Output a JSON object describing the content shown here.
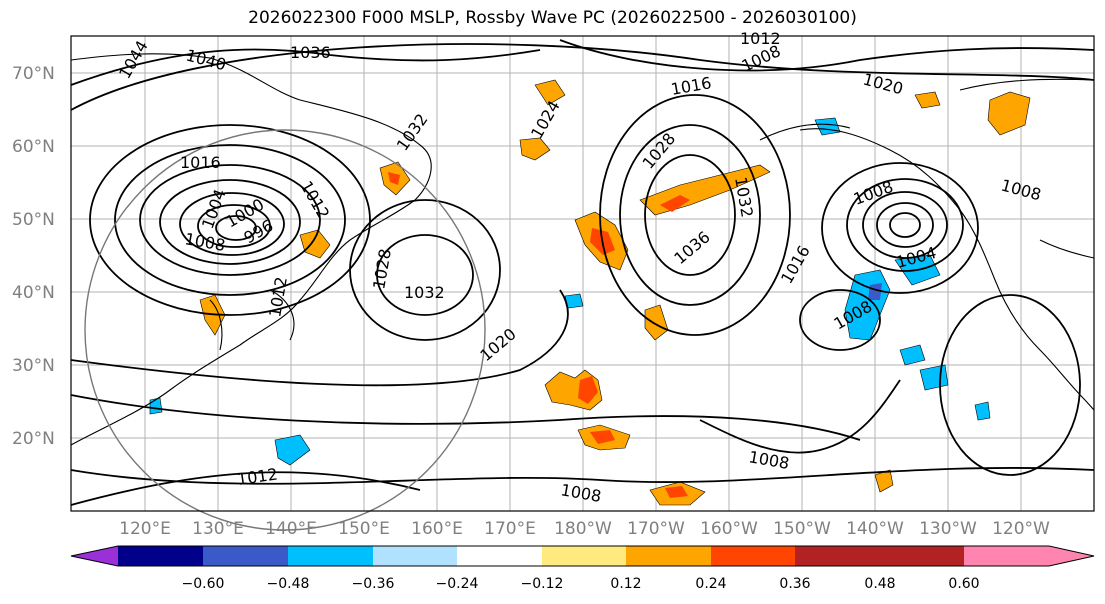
{
  "title": "2026022300 F000 MSLP, Rossby Wave PC (2026022500 - 2026030100)",
  "lat_labels": [
    "70°N",
    "60°N",
    "50°N",
    "40°N",
    "30°N",
    "20°N"
  ],
  "lon_labels": [
    "120°E",
    "130°E",
    "140°E",
    "150°E",
    "160°E",
    "170°E",
    "180°W",
    "170°W",
    "160°W",
    "150°W",
    "140°W",
    "130°W",
    "120°W"
  ],
  "colorbar": {
    "ticks": [
      "−0.60",
      "−0.48",
      "−0.36",
      "−0.24",
      "−0.12",
      "0.12",
      "0.24",
      "0.36",
      "0.48",
      "0.60"
    ],
    "colors": {
      "lt_-0.60": "#9b30d9",
      "-0.60_-0.48": "#00008b",
      "-0.48_-0.36": "#3a5bc7",
      "-0.36_-0.24": "#00bfff",
      "-0.24_-0.12": "#b0e2ff",
      "-0.12_0.12": "#ffffff",
      "0.12_0.24": "#ffea80",
      "0.24_0.36": "#ffa500",
      "0.36_0.48": "#ff4500",
      "0.48_0.60": "#b22222",
      "gt_0.60": "#ff85b0"
    }
  },
  "isobar_labels": [
    "1044",
    "1040",
    "1036",
    "1012",
    "1008",
    "1016",
    "1020",
    "1024",
    "1032",
    "1016",
    "1012",
    "1008",
    "1004",
    "1000",
    "996",
    "1028",
    "1032",
    "1020",
    "1012",
    "1028",
    "1036",
    "1032",
    "1016",
    "1008",
    "1008",
    "1012",
    "1004",
    "1008",
    "1008",
    "1008"
  ]
}
